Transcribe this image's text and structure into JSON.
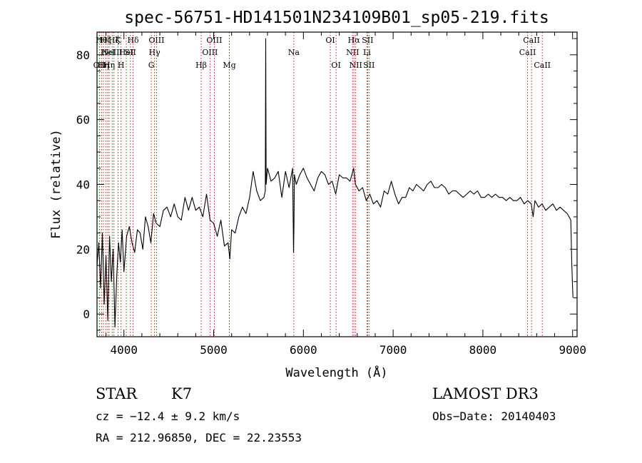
{
  "chart_data": {
    "type": "line",
    "title": "spec-56751-HD141501N234109B01_sp05-219.fits",
    "xlabel": "Wavelength (Å)",
    "ylabel": "Flux (relative)",
    "xlim": [
      3700,
      9050
    ],
    "ylim": [
      -7,
      87
    ],
    "xticks": [
      4000,
      5000,
      6000,
      7000,
      8000,
      9000
    ],
    "yticks": [
      0,
      20,
      40,
      60,
      80
    ],
    "grid": false,
    "line_color": "#000000",
    "marker_color": "#cc0000",
    "series": [
      {
        "name": "flux",
        "x": [
          3700,
          3720,
          3740,
          3760,
          3780,
          3800,
          3820,
          3840,
          3860,
          3880,
          3900,
          3920,
          3940,
          3960,
          3980,
          4000,
          4030,
          4060,
          4090,
          4120,
          4150,
          4180,
          4210,
          4240,
          4270,
          4300,
          4330,
          4360,
          4400,
          4440,
          4480,
          4520,
          4560,
          4600,
          4640,
          4680,
          4720,
          4760,
          4800,
          4840,
          4880,
          4920,
          4960,
          5000,
          5040,
          5080,
          5120,
          5160,
          5180,
          5200,
          5240,
          5280,
          5320,
          5360,
          5400,
          5440,
          5480,
          5520,
          5560,
          5575,
          5580,
          5585,
          5600,
          5640,
          5680,
          5720,
          5760,
          5800,
          5840,
          5880,
          5890,
          5895,
          5900,
          5920,
          5960,
          6000,
          6040,
          6080,
          6120,
          6160,
          6200,
          6240,
          6280,
          6320,
          6360,
          6400,
          6440,
          6480,
          6520,
          6560,
          6580,
          6620,
          6660,
          6700,
          6740,
          6780,
          6820,
          6860,
          6900,
          6940,
          6980,
          7020,
          7060,
          7100,
          7140,
          7180,
          7220,
          7260,
          7300,
          7340,
          7380,
          7420,
          7460,
          7500,
          7540,
          7580,
          7620,
          7660,
          7700,
          7740,
          7780,
          7820,
          7860,
          7900,
          7940,
          7980,
          8020,
          8060,
          8100,
          8140,
          8180,
          8220,
          8260,
          8300,
          8340,
          8380,
          8420,
          8460,
          8500,
          8540,
          8560,
          8580,
          8620,
          8660,
          8700,
          8740,
          8780,
          8820,
          8860,
          8900,
          8940,
          8960,
          8980,
          8990,
          9000,
          9005
        ],
        "values": [
          15,
          22,
          8,
          25,
          3,
          18,
          -2,
          24,
          10,
          20,
          -4,
          12,
          22,
          16,
          26,
          13,
          24,
          27,
          22,
          19,
          26,
          25,
          20,
          30,
          27,
          22,
          31,
          28,
          27,
          32,
          33,
          30,
          34,
          30,
          29,
          36,
          32,
          36,
          32,
          33,
          30,
          37,
          29,
          28,
          24,
          29,
          21,
          22,
          17,
          26,
          25,
          30,
          33,
          31,
          36,
          44,
          38,
          35,
          36,
          38,
          85,
          40,
          45,
          41,
          42,
          44,
          36,
          44,
          39,
          45,
          19,
          27,
          43,
          40,
          43,
          45,
          42,
          40,
          38,
          42,
          44,
          43,
          40,
          41,
          37,
          43,
          42,
          42,
          41,
          45,
          40,
          38,
          39,
          35,
          37,
          34,
          35,
          33,
          38,
          37,
          41,
          37,
          34,
          36,
          36,
          39,
          38,
          40,
          39,
          38,
          40,
          41,
          39,
          39,
          40,
          39,
          37,
          38,
          38,
          37,
          36,
          37,
          38,
          37,
          38,
          36,
          36,
          37,
          36,
          37,
          36,
          36,
          35,
          36,
          35,
          35,
          36,
          34,
          35,
          34,
          30,
          35,
          33,
          34,
          32,
          33,
          34,
          32,
          33,
          32,
          31,
          30,
          29,
          16,
          8,
          5
        ]
      }
    ],
    "lines": [
      {
        "wl": 3728,
        "label": "OII",
        "row": 2
      },
      {
        "wl": 3750,
        "label": "Hθ",
        "row": 0
      },
      {
        "wl": 3771,
        "label": "Hη",
        "row": 2
      },
      {
        "wl": 3798,
        "label": "Hζ",
        "row": 0
      },
      {
        "wl": 3820,
        "label": "HeI",
        "row": 1
      },
      {
        "wl": 3835,
        "label": "Hη",
        "row": 2
      },
      {
        "wl": 3869,
        "label": "NeIII",
        "row": 1
      },
      {
        "wl": 3889,
        "label": "Hζ",
        "row": 0
      },
      {
        "wl": 3934,
        "label": "K",
        "row": 0
      },
      {
        "wl": 3968,
        "label": "H",
        "row": 2
      },
      {
        "wl": 4026,
        "label": "HeI",
        "row": 1
      },
      {
        "wl": 4072,
        "label": "SII",
        "row": 1
      },
      {
        "wl": 4102,
        "label": "Hδ",
        "row": 0
      },
      {
        "wl": 4305,
        "label": "G",
        "row": 2
      },
      {
        "wl": 4341,
        "label": "Hγ",
        "row": 1
      },
      {
        "wl": 4363,
        "label": "OIII",
        "row": 0
      },
      {
        "wl": 4861,
        "label": "Hβ",
        "row": 2
      },
      {
        "wl": 4959,
        "label": "OIII",
        "row": 1
      },
      {
        "wl": 5007,
        "label": "OIII",
        "row": 0
      },
      {
        "wl": 5175,
        "label": "Mg",
        "row": 2
      },
      {
        "wl": 5893,
        "label": "Na",
        "row": 1
      },
      {
        "wl": 6300,
        "label": "OI",
        "row": 0
      },
      {
        "wl": 6364,
        "label": "OI",
        "row": 2
      },
      {
        "wl": 6548,
        "label": "NII",
        "row": 1
      },
      {
        "wl": 6563,
        "label": "Hα",
        "row": 0
      },
      {
        "wl": 6583,
        "label": "NII",
        "row": 2
      },
      {
        "wl": 6708,
        "label": "Li",
        "row": 1
      },
      {
        "wl": 6716,
        "label": "SII",
        "row": 0
      },
      {
        "wl": 6731,
        "label": "SII",
        "row": 2
      },
      {
        "wl": 8498,
        "label": "CaII",
        "row": 1
      },
      {
        "wl": 8542,
        "label": "CaII",
        "row": 0
      },
      {
        "wl": 8662,
        "label": "CaII",
        "row": 2
      }
    ]
  },
  "info": {
    "class_label": "STAR",
    "subclass": "K7",
    "survey": "LAMOST DR3",
    "cz": "cz = −12.4 ± 9.2 km/s",
    "obs_date": "Obs−Date: 20140403",
    "coords": "RA = 212.96850, DEC =  22.23553"
  }
}
